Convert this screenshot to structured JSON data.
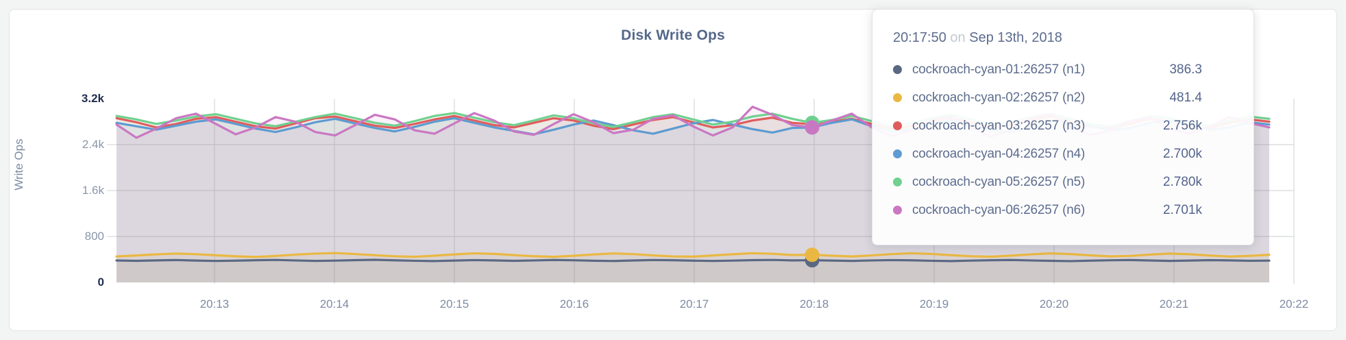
{
  "page": {
    "background": "#f3f4f4"
  },
  "card": {
    "background": "#ffffff",
    "border_color": "#e2e3e5"
  },
  "tooltip": {
    "time": "20:17:50",
    "on_word": "on",
    "date": "Sep 13th, 2018",
    "rows": [
      {
        "label": "cockroach-cyan-01:26257 (n1)",
        "value": "386.3",
        "color": "#5a6883"
      },
      {
        "label": "cockroach-cyan-02:26257 (n2)",
        "value": "481.4",
        "color": "#eab842"
      },
      {
        "label": "cockroach-cyan-03:26257 (n3)",
        "value": "2.756k",
        "color": "#e05c5c"
      },
      {
        "label": "cockroach-cyan-04:26257 (n4)",
        "value": "2.700k",
        "color": "#5d9bd1"
      },
      {
        "label": "cockroach-cyan-05:26257 (n5)",
        "value": "2.780k",
        "color": "#70d08f"
      },
      {
        "label": "cockroach-cyan-06:26257 (n6)",
        "value": "2.701k",
        "color": "#ca77c3"
      }
    ]
  },
  "chart_data": {
    "type": "line",
    "title": "Disk Write Ops",
    "ylabel": "Write Ops",
    "xlabel": "",
    "ylim": [
      0,
      3200
    ],
    "y_ticks": [
      0,
      800,
      1600,
      2400,
      3200
    ],
    "y_tick_labels": [
      "0",
      "800",
      "1.6k",
      "2.4k",
      "3.2k"
    ],
    "x_ticks": [
      "20:13",
      "20:14",
      "20:15",
      "20:16",
      "20:17",
      "20:18",
      "20:19",
      "20:20",
      "20:21",
      "20:22"
    ],
    "grid": true,
    "legend_position": "tooltip",
    "area_fill_opacity": 0.1,
    "hover_index": 35,
    "hover_time": "20:17:50",
    "series": [
      {
        "name": "cockroach-cyan-01:26257 (n1)",
        "color": "#5a6883",
        "values": [
          382,
          376,
          384,
          390,
          381,
          374,
          379,
          387,
          392,
          383,
          375,
          380,
          388,
          394,
          385,
          377,
          372,
          381,
          389,
          384,
          376,
          383,
          391,
          386,
          378,
          373,
          382,
          390,
          387,
          379,
          374,
          380,
          388,
          392,
          384,
          386.3,
          381,
          375,
          383,
          389,
          385,
          377,
          372,
          380,
          387,
          391,
          383,
          376,
          371,
          379,
          386,
          390,
          382,
          375,
          381,
          388,
          384,
          377,
          380
        ]
      },
      {
        "name": "cockroach-cyan-02:26257 (n2)",
        "color": "#eab842",
        "values": [
          452,
          470,
          489,
          503,
          492,
          473,
          455,
          443,
          461,
          484,
          502,
          511,
          495,
          474,
          456,
          447,
          466,
          488,
          507,
          497,
          476,
          457,
          446,
          464,
          487,
          505,
          493,
          471,
          453,
          449,
          470,
          491,
          509,
          499,
          478,
          481.4,
          466,
          452,
          471,
          493,
          508,
          496,
          475,
          456,
          448,
          467,
          489,
          506,
          494,
          472,
          454,
          462,
          485,
          503,
          491,
          469,
          451,
          463,
          482
        ]
      },
      {
        "name": "cockroach-cyan-03:26257 (n3)",
        "color": "#e05c5c",
        "values": [
          2860,
          2790,
          2700,
          2760,
          2850,
          2880,
          2800,
          2720,
          2680,
          2770,
          2860,
          2890,
          2810,
          2730,
          2690,
          2760,
          2840,
          2900,
          2820,
          2740,
          2700,
          2780,
          2860,
          2820,
          2730,
          2670,
          2750,
          2830,
          2880,
          2790,
          2700,
          2740,
          2820,
          2870,
          2780,
          2756,
          2800,
          2850,
          2760,
          2680,
          2720,
          2810,
          2870,
          2790,
          2700,
          2750,
          2830,
          2890,
          2800,
          2710,
          2680,
          2760,
          2850,
          2810,
          2720,
          2690,
          2780,
          2840,
          2800
        ]
      },
      {
        "name": "cockroach-cyan-04:26257 (n4)",
        "color": "#5d9bd1",
        "values": [
          2780,
          2720,
          2660,
          2730,
          2800,
          2840,
          2760,
          2680,
          2620,
          2700,
          2790,
          2850,
          2770,
          2690,
          2630,
          2710,
          2800,
          2860,
          2780,
          2700,
          2640,
          2580,
          2660,
          2750,
          2820,
          2740,
          2650,
          2590,
          2680,
          2770,
          2830,
          2750,
          2670,
          2610,
          2690,
          2700,
          2780,
          2840,
          2720,
          2630,
          2670,
          2760,
          2830,
          2750,
          2660,
          2620,
          2710,
          2800,
          2850,
          2730,
          2650,
          2690,
          2780,
          2820,
          2740,
          2660,
          2700,
          2790,
          2750
        ]
      },
      {
        "name": "cockroach-cyan-05:26257 (n5)",
        "color": "#70d08f",
        "values": [
          2900,
          2840,
          2760,
          2820,
          2890,
          2930,
          2850,
          2770,
          2720,
          2800,
          2880,
          2940,
          2860,
          2780,
          2730,
          2810,
          2900,
          2950,
          2870,
          2790,
          2740,
          2820,
          2910,
          2860,
          2770,
          2710,
          2790,
          2880,
          2930,
          2840,
          2750,
          2800,
          2890,
          2940,
          2850,
          2780,
          2830,
          2900,
          2810,
          2720,
          2770,
          2860,
          2920,
          2840,
          2750,
          2790,
          2880,
          2940,
          2850,
          2760,
          2720,
          2810,
          2900,
          2860,
          2770,
          2730,
          2820,
          2890,
          2850
        ]
      },
      {
        "name": "cockroach-cyan-06:26257 (n6)",
        "color": "#ca77c3",
        "values": [
          2750,
          2520,
          2680,
          2860,
          2940,
          2760,
          2580,
          2700,
          2880,
          2800,
          2620,
          2560,
          2740,
          2920,
          2840,
          2650,
          2590,
          2770,
          2950,
          2820,
          2630,
          2570,
          2760,
          2930,
          2790,
          2600,
          2660,
          2850,
          2910,
          2720,
          2560,
          2700,
          3060,
          2920,
          2740,
          2701,
          2820,
          2940,
          2700,
          2550,
          2650,
          2830,
          2890,
          2690,
          2540,
          2660,
          2860,
          2930,
          2710,
          2570,
          2640,
          2810,
          2870,
          2680,
          2590,
          2720,
          2880,
          2780,
          2700
        ]
      }
    ]
  }
}
